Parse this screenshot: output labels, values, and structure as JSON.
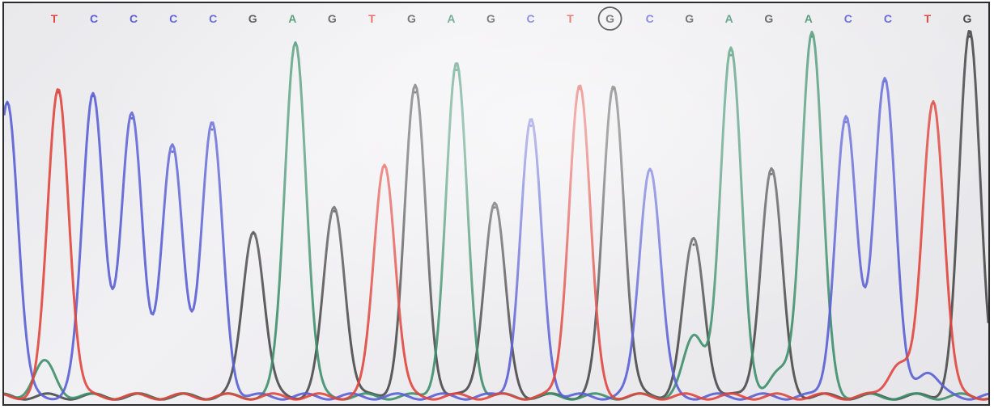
{
  "chart_data": {
    "type": "line",
    "title": "",
    "xlabel": "",
    "ylabel": "",
    "grid": false,
    "sequence": [
      "T",
      "C",
      "C",
      "C",
      "C",
      "G",
      "A",
      "G",
      "T",
      "G",
      "A",
      "G",
      "C",
      "T",
      "G",
      "C",
      "G",
      "A",
      "G",
      "A",
      "C",
      "C",
      "T",
      "G"
    ],
    "highlighted_index": 14,
    "highlight_marker": "circle",
    "colors": {
      "A": "#3d8f6a",
      "C": "#5a5fd4",
      "G": "#4a4a4a",
      "T": "#e0463e"
    },
    "peaks": [
      {
        "x": 4,
        "y": 0.8,
        "base": "C"
      },
      {
        "x": 67,
        "y": 0.83,
        "base": "T"
      },
      {
        "x": 110,
        "y": 0.82,
        "base": "C"
      },
      {
        "x": 158,
        "y": 0.76,
        "base": "C"
      },
      {
        "x": 208,
        "y": 0.67,
        "base": "C"
      },
      {
        "x": 257,
        "y": 0.73,
        "base": "C"
      },
      {
        "x": 308,
        "y": 0.45,
        "base": "G"
      },
      {
        "x": 360,
        "y": 0.96,
        "base": "A"
      },
      {
        "x": 408,
        "y": 0.51,
        "base": "G"
      },
      {
        "x": 470,
        "y": 0.63,
        "base": "T"
      },
      {
        "x": 508,
        "y": 0.83,
        "base": "G"
      },
      {
        "x": 559,
        "y": 0.89,
        "base": "A"
      },
      {
        "x": 606,
        "y": 0.52,
        "base": "G"
      },
      {
        "x": 651,
        "y": 0.74,
        "base": "C"
      },
      {
        "x": 711,
        "y": 0.84,
        "base": "T"
      },
      {
        "x": 753,
        "y": 0.84,
        "base": "G"
      },
      {
        "x": 798,
        "y": 0.62,
        "base": "C"
      },
      {
        "x": 852,
        "y": 0.42,
        "base": "G"
      },
      {
        "x": 898,
        "y": 0.93,
        "base": "A"
      },
      {
        "x": 948,
        "y": 0.61,
        "base": "G"
      },
      {
        "x": 998,
        "y": 0.98,
        "base": "A"
      },
      {
        "x": 1040,
        "y": 0.75,
        "base": "C"
      },
      {
        "x": 1088,
        "y": 0.86,
        "base": "C"
      },
      {
        "x": 1148,
        "y": 0.8,
        "base": "T"
      },
      {
        "x": 1193,
        "y": 0.98,
        "base": "G"
      }
    ],
    "secondary_peaks": [
      {
        "x": 50,
        "y": 0.09,
        "base": "A"
      },
      {
        "x": 853,
        "y": 0.16,
        "base": "A"
      },
      {
        "x": 958,
        "y": 0.06,
        "base": "A"
      },
      {
        "x": 1105,
        "y": 0.09,
        "base": "T"
      },
      {
        "x": 1140,
        "y": 0.07,
        "base": "C"
      }
    ],
    "ylim": [
      0,
      1
    ]
  }
}
